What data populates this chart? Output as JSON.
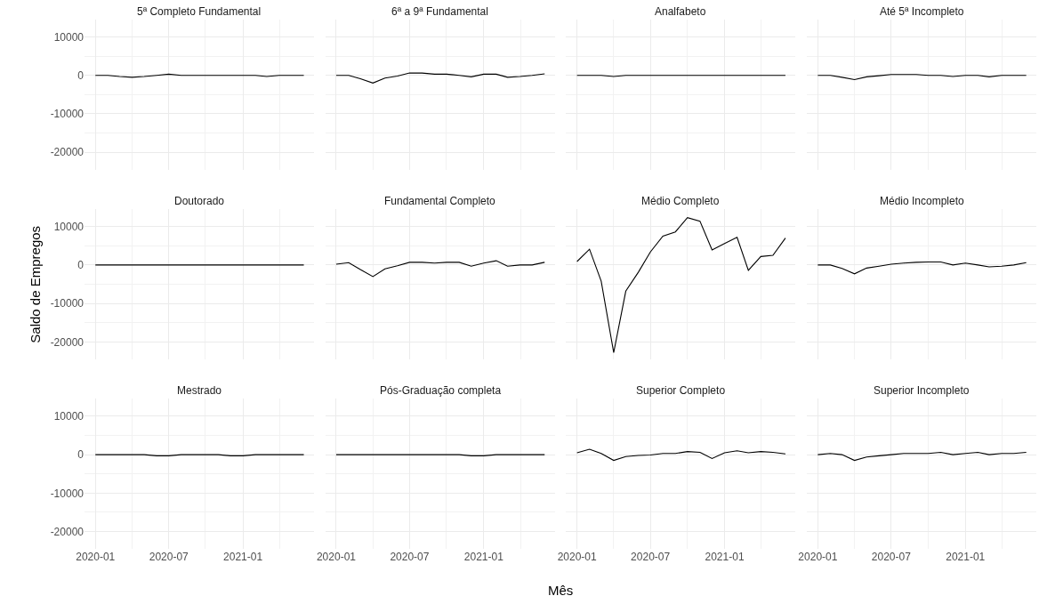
{
  "chart_data": [
    {
      "type": "line",
      "title": "5ª Completo Fundamental",
      "x": [
        "2020-01",
        "2020-02",
        "2020-03",
        "2020-04",
        "2020-05",
        "2020-06",
        "2020-07",
        "2020-08",
        "2020-09",
        "2020-10",
        "2020-11",
        "2020-12",
        "2021-01",
        "2021-02",
        "2021-03",
        "2021-04",
        "2021-05",
        "2021-06"
      ],
      "values": [
        0,
        0,
        -300,
        -500,
        -300,
        0,
        300,
        0,
        0,
        0,
        0,
        0,
        0,
        0,
        -300,
        0,
        0,
        0
      ],
      "color": "#000000",
      "xlim": [
        "2019-12-05",
        "2021-06-26"
      ],
      "ylim": [
        -24500,
        14500
      ],
      "yticks": [
        -20000,
        -10000,
        0,
        10000
      ],
      "xticks": [
        "2020-01",
        "2020-07",
        "2021-01"
      ],
      "grid": true,
      "tick_labels": "y"
    },
    {
      "type": "line",
      "title": "6ª a 9ª Fundamental",
      "x": [
        "2020-01",
        "2020-02",
        "2020-03",
        "2020-04",
        "2020-05",
        "2020-06",
        "2020-07",
        "2020-08",
        "2020-09",
        "2020-10",
        "2020-11",
        "2020-12",
        "2021-01",
        "2021-02",
        "2021-03",
        "2021-04",
        "2021-05",
        "2021-06"
      ],
      "values": [
        0,
        0,
        -900,
        -2000,
        -700,
        -200,
        600,
        600,
        300,
        300,
        0,
        -400,
        300,
        300,
        -500,
        -300,
        0,
        400
      ],
      "color": "#000000",
      "xlim": [
        "2019-12-05",
        "2021-06-26"
      ],
      "ylim": [
        -24500,
        14500
      ],
      "yticks": [
        -20000,
        -10000,
        0,
        10000
      ],
      "xticks": [
        "2020-01",
        "2020-07",
        "2021-01"
      ],
      "grid": true,
      "tick_labels": false
    },
    {
      "type": "line",
      "title": "Analfabeto",
      "x": [
        "2020-01",
        "2020-02",
        "2020-03",
        "2020-04",
        "2020-05",
        "2020-06",
        "2020-07",
        "2020-08",
        "2020-09",
        "2020-10",
        "2020-11",
        "2020-12",
        "2021-01",
        "2021-02",
        "2021-03",
        "2021-04",
        "2021-05",
        "2021-06"
      ],
      "values": [
        0,
        0,
        0,
        -300,
        0,
        0,
        0,
        0,
        0,
        0,
        0,
        0,
        0,
        0,
        0,
        0,
        0,
        0
      ],
      "color": "#000000",
      "xlim": [
        "2019-12-05",
        "2021-06-26"
      ],
      "ylim": [
        -24500,
        14500
      ],
      "yticks": [
        -20000,
        -10000,
        0,
        10000
      ],
      "xticks": [
        "2020-01",
        "2020-07",
        "2021-01"
      ],
      "grid": true,
      "tick_labels": false
    },
    {
      "type": "line",
      "title": "Até 5ª Incompleto",
      "x": [
        "2020-01",
        "2020-02",
        "2020-03",
        "2020-04",
        "2020-05",
        "2020-06",
        "2020-07",
        "2020-08",
        "2020-09",
        "2020-10",
        "2020-11",
        "2020-12",
        "2021-01",
        "2021-02",
        "2021-03",
        "2021-04",
        "2021-05",
        "2021-06"
      ],
      "values": [
        0,
        0,
        -500,
        -1100,
        -400,
        -100,
        200,
        200,
        200,
        0,
        0,
        -300,
        0,
        0,
        -400,
        0,
        0,
        0
      ],
      "color": "#000000",
      "xlim": [
        "2019-12-05",
        "2021-06-26"
      ],
      "ylim": [
        -24500,
        14500
      ],
      "yticks": [
        -20000,
        -10000,
        0,
        10000
      ],
      "xticks": [
        "2020-01",
        "2020-07",
        "2021-01"
      ],
      "grid": true,
      "tick_labels": false
    },
    {
      "type": "line",
      "title": "Doutorado",
      "ylabel": "Saldo de Empregos",
      "x": [
        "2020-01",
        "2020-02",
        "2020-03",
        "2020-04",
        "2020-05",
        "2020-06",
        "2020-07",
        "2020-08",
        "2020-09",
        "2020-10",
        "2020-11",
        "2020-12",
        "2021-01",
        "2021-02",
        "2021-03",
        "2021-04",
        "2021-05",
        "2021-06"
      ],
      "values": [
        0,
        0,
        0,
        0,
        0,
        0,
        0,
        0,
        0,
        0,
        0,
        0,
        0,
        0,
        0,
        0,
        0,
        0
      ],
      "color": "#000000",
      "xlim": [
        "2019-12-05",
        "2021-06-26"
      ],
      "ylim": [
        -24500,
        14500
      ],
      "yticks": [
        -20000,
        -10000,
        0,
        10000
      ],
      "xticks": [
        "2020-01",
        "2020-07",
        "2021-01"
      ],
      "grid": true,
      "tick_labels": "y"
    },
    {
      "type": "line",
      "title": "Fundamental Completo",
      "x": [
        "2020-01",
        "2020-02",
        "2020-03",
        "2020-04",
        "2020-05",
        "2020-06",
        "2020-07",
        "2020-08",
        "2020-09",
        "2020-10",
        "2020-11",
        "2020-12",
        "2021-01",
        "2021-02",
        "2021-03",
        "2021-04",
        "2021-05",
        "2021-06"
      ],
      "values": [
        200,
        600,
        -1200,
        -3000,
        -1000,
        -200,
        700,
        700,
        500,
        700,
        700,
        -300,
        500,
        1100,
        -300,
        0,
        0,
        700
      ],
      "color": "#000000",
      "xlim": [
        "2019-12-05",
        "2021-06-26"
      ],
      "ylim": [
        -24500,
        14500
      ],
      "yticks": [
        -20000,
        -10000,
        0,
        10000
      ],
      "xticks": [
        "2020-01",
        "2020-07",
        "2021-01"
      ],
      "grid": true,
      "tick_labels": false
    },
    {
      "type": "line",
      "title": "Médio Completo",
      "x": [
        "2020-01",
        "2020-02",
        "2020-03",
        "2020-04",
        "2020-05",
        "2020-06",
        "2020-07",
        "2020-08",
        "2020-09",
        "2020-10",
        "2020-11",
        "2020-12",
        "2021-01",
        "2021-02",
        "2021-03",
        "2021-04",
        "2021-05",
        "2021-06"
      ],
      "values": [
        900,
        4100,
        -4200,
        -22800,
        -6800,
        -1900,
        3400,
        7500,
        8600,
        12300,
        11400,
        3900,
        5600,
        7200,
        -1400,
        2200,
        2500,
        7000
      ],
      "color": "#000000",
      "xlim": [
        "2019-12-05",
        "2021-06-26"
      ],
      "ylim": [
        -24500,
        14500
      ],
      "yticks": [
        -20000,
        -10000,
        0,
        10000
      ],
      "xticks": [
        "2020-01",
        "2020-07",
        "2021-01"
      ],
      "grid": true,
      "tick_labels": false
    },
    {
      "type": "line",
      "title": "Médio Incompleto",
      "x": [
        "2020-01",
        "2020-02",
        "2020-03",
        "2020-04",
        "2020-05",
        "2020-06",
        "2020-07",
        "2020-08",
        "2020-09",
        "2020-10",
        "2020-11",
        "2020-12",
        "2021-01",
        "2021-02",
        "2021-03",
        "2021-04",
        "2021-05",
        "2021-06"
      ],
      "values": [
        0,
        0,
        -900,
        -2300,
        -800,
        -300,
        200,
        500,
        700,
        800,
        800,
        0,
        500,
        0,
        -500,
        -300,
        0,
        600
      ],
      "color": "#000000",
      "xlim": [
        "2019-12-05",
        "2021-06-26"
      ],
      "ylim": [
        -24500,
        14500
      ],
      "yticks": [
        -20000,
        -10000,
        0,
        10000
      ],
      "xticks": [
        "2020-01",
        "2020-07",
        "2021-01"
      ],
      "grid": true,
      "tick_labels": false
    },
    {
      "type": "line",
      "title": "Mestrado",
      "x": [
        "2020-01",
        "2020-02",
        "2020-03",
        "2020-04",
        "2020-05",
        "2020-06",
        "2020-07",
        "2020-08",
        "2020-09",
        "2020-10",
        "2020-11",
        "2020-12",
        "2021-01",
        "2021-02",
        "2021-03",
        "2021-04",
        "2021-05",
        "2021-06"
      ],
      "values": [
        0,
        0,
        0,
        0,
        0,
        -300,
        -300,
        0,
        0,
        0,
        0,
        -300,
        -300,
        0,
        0,
        0,
        0,
        0
      ],
      "color": "#000000",
      "xlim": [
        "2019-12-05",
        "2021-06-26"
      ],
      "ylim": [
        -24500,
        14500
      ],
      "yticks": [
        -20000,
        -10000,
        0,
        10000
      ],
      "xticks": [
        "2020-01",
        "2020-07",
        "2021-01"
      ],
      "grid": true
    },
    {
      "type": "line",
      "title": "Pós-Graduação completa",
      "xlabel": "Mês",
      "x": [
        "2020-01",
        "2020-02",
        "2020-03",
        "2020-04",
        "2020-05",
        "2020-06",
        "2020-07",
        "2020-08",
        "2020-09",
        "2020-10",
        "2020-11",
        "2020-12",
        "2021-01",
        "2021-02",
        "2021-03",
        "2021-04",
        "2021-05",
        "2021-06"
      ],
      "values": [
        0,
        0,
        0,
        0,
        0,
        0,
        0,
        0,
        0,
        0,
        0,
        -300,
        -300,
        0,
        0,
        0,
        0,
        0
      ],
      "color": "#000000",
      "xlim": [
        "2019-12-05",
        "2021-06-26"
      ],
      "ylim": [
        -24500,
        14500
      ],
      "yticks": [
        -20000,
        -10000,
        0,
        10000
      ],
      "xticks": [
        "2020-01",
        "2020-07",
        "2021-01"
      ],
      "grid": true,
      "tick_labels": "x"
    },
    {
      "type": "line",
      "title": "Superior Completo",
      "x": [
        "2020-01",
        "2020-02",
        "2020-03",
        "2020-04",
        "2020-05",
        "2020-06",
        "2020-07",
        "2020-08",
        "2020-09",
        "2020-10",
        "2020-11",
        "2020-12",
        "2021-01",
        "2021-02",
        "2021-03",
        "2021-04",
        "2021-05",
        "2021-06"
      ],
      "values": [
        500,
        1400,
        300,
        -1500,
        -500,
        -200,
        -100,
        300,
        300,
        800,
        600,
        -1000,
        500,
        1000,
        500,
        800,
        600,
        200
      ],
      "color": "#000000",
      "xlim": [
        "2019-12-05",
        "2021-06-26"
      ],
      "ylim": [
        -24500,
        14500
      ],
      "yticks": [
        -20000,
        -10000,
        0,
        10000
      ],
      "xticks": [
        "2020-01",
        "2020-07",
        "2021-01"
      ],
      "grid": true,
      "tick_labels": "x"
    },
    {
      "type": "line",
      "title": "Superior Incompleto",
      "x": [
        "2020-01",
        "2020-02",
        "2020-03",
        "2020-04",
        "2020-05",
        "2020-06",
        "2020-07",
        "2020-08",
        "2020-09",
        "2020-10",
        "2020-11",
        "2020-12",
        "2021-01",
        "2021-02",
        "2021-03",
        "2021-04",
        "2021-05",
        "2021-06"
      ],
      "values": [
        0,
        300,
        0,
        -1500,
        -600,
        -300,
        0,
        300,
        300,
        300,
        600,
        0,
        300,
        600,
        0,
        300,
        300,
        600
      ],
      "color": "#000000",
      "xlim": [
        "2019-12-05",
        "2021-06-26"
      ],
      "ylim": [
        -24500,
        14500
      ],
      "yticks": [
        -20000,
        -10000,
        0,
        10000
      ],
      "xticks": [
        "2020-01",
        "2020-07",
        "2021-01"
      ],
      "grid": true,
      "tick_labels": "x"
    }
  ]
}
